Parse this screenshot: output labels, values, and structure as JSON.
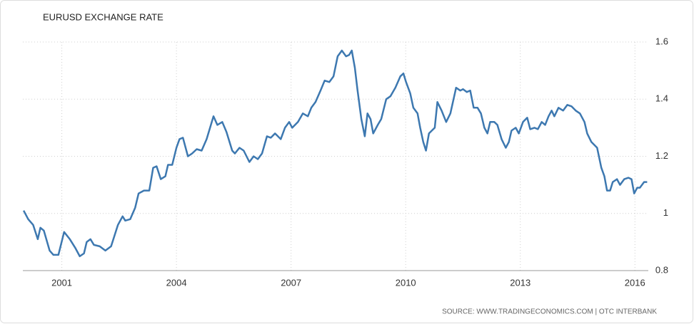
{
  "chart_data": {
    "type": "line",
    "title": "EURUSD EXCHANGE RATE",
    "source": "SOURCE: WWW.TRADINGECONOMICS.COM | OTC INTERBANK",
    "x": [
      2000.0,
      2000.12,
      2000.25,
      2000.37,
      2000.44,
      2000.53,
      2000.68,
      2000.78,
      2000.91,
      2001.06,
      2001.21,
      2001.35,
      2001.47,
      2001.58,
      2001.65,
      2001.75,
      2001.84,
      2001.99,
      2002.14,
      2002.29,
      2002.47,
      2002.59,
      2002.66,
      2002.79,
      2002.92,
      2003.01,
      2003.15,
      2003.29,
      2003.39,
      2003.48,
      2003.59,
      2003.71,
      2003.78,
      2003.89,
      2004.0,
      2004.08,
      2004.17,
      2004.3,
      2004.41,
      2004.53,
      2004.66,
      2004.79,
      2004.97,
      2005.07,
      2005.2,
      2005.31,
      2005.46,
      2005.53,
      2005.65,
      2005.76,
      2005.91,
      2006.02,
      2006.13,
      2006.24,
      2006.37,
      2006.47,
      2006.58,
      2006.73,
      2006.84,
      2006.95,
      2007.03,
      2007.18,
      2007.31,
      2007.44,
      2007.53,
      2007.64,
      2007.77,
      2007.88,
      2008.0,
      2008.11,
      2008.22,
      2008.33,
      2008.44,
      2008.52,
      2008.59,
      2008.67,
      2008.74,
      2008.84,
      2008.93,
      2009.0,
      2009.08,
      2009.15,
      2009.27,
      2009.36,
      2009.49,
      2009.6,
      2009.73,
      2009.86,
      2009.94,
      2010.01,
      2010.12,
      2010.2,
      2010.31,
      2010.38,
      2010.46,
      2010.53,
      2010.61,
      2010.76,
      2010.83,
      2010.94,
      2011.06,
      2011.17,
      2011.32,
      2011.43,
      2011.5,
      2011.6,
      2011.69,
      2011.78,
      2011.88,
      2011.97,
      2012.06,
      2012.14,
      2012.21,
      2012.32,
      2012.4,
      2012.51,
      2012.62,
      2012.7,
      2012.77,
      2012.88,
      2012.96,
      2013.07,
      2013.18,
      2013.26,
      2013.37,
      2013.46,
      2013.56,
      2013.65,
      2013.74,
      2013.82,
      2013.89,
      2014.0,
      2014.12,
      2014.23,
      2014.34,
      2014.45,
      2014.56,
      2014.68,
      2014.75,
      2014.86,
      2015.01,
      2015.12,
      2015.2,
      2015.27,
      2015.35,
      2015.42,
      2015.53,
      2015.61,
      2015.72,
      2015.83,
      2015.91,
      2015.98,
      2016.06,
      2016.13,
      2016.24,
      2016.32
    ],
    "series": [
      {
        "color": "#3d78b0",
        "values": [
          1.01,
          0.98,
          0.96,
          0.91,
          0.95,
          0.94,
          0.87,
          0.855,
          0.855,
          0.935,
          0.91,
          0.88,
          0.85,
          0.86,
          0.9,
          0.91,
          0.89,
          0.885,
          0.87,
          0.885,
          0.96,
          0.99,
          0.975,
          0.98,
          1.02,
          1.07,
          1.08,
          1.08,
          1.16,
          1.165,
          1.12,
          1.13,
          1.17,
          1.17,
          1.23,
          1.26,
          1.265,
          1.2,
          1.21,
          1.225,
          1.22,
          1.26,
          1.34,
          1.31,
          1.32,
          1.285,
          1.22,
          1.21,
          1.23,
          1.22,
          1.18,
          1.2,
          1.19,
          1.21,
          1.27,
          1.265,
          1.28,
          1.26,
          1.3,
          1.32,
          1.3,
          1.32,
          1.35,
          1.34,
          1.37,
          1.39,
          1.43,
          1.465,
          1.46,
          1.48,
          1.55,
          1.57,
          1.55,
          1.555,
          1.57,
          1.51,
          1.43,
          1.33,
          1.27,
          1.35,
          1.33,
          1.28,
          1.31,
          1.33,
          1.4,
          1.41,
          1.44,
          1.48,
          1.49,
          1.46,
          1.42,
          1.37,
          1.35,
          1.3,
          1.25,
          1.22,
          1.28,
          1.3,
          1.39,
          1.36,
          1.32,
          1.35,
          1.44,
          1.43,
          1.435,
          1.425,
          1.43,
          1.37,
          1.37,
          1.35,
          1.3,
          1.28,
          1.32,
          1.32,
          1.31,
          1.26,
          1.23,
          1.25,
          1.29,
          1.3,
          1.28,
          1.32,
          1.335,
          1.295,
          1.3,
          1.295,
          1.32,
          1.31,
          1.34,
          1.36,
          1.34,
          1.37,
          1.36,
          1.38,
          1.375,
          1.36,
          1.35,
          1.32,
          1.28,
          1.25,
          1.23,
          1.16,
          1.13,
          1.08,
          1.08,
          1.11,
          1.12,
          1.1,
          1.12,
          1.125,
          1.12,
          1.07,
          1.09,
          1.09,
          1.11,
          1.11
        ]
      }
    ],
    "xlim": [
      1999.98,
      2016.35
    ],
    "xticks": [
      2001,
      2004,
      2007,
      2010,
      2013,
      2016
    ],
    "ylim": [
      0.8,
      1.6
    ],
    "yticks": [
      0.8,
      1,
      1.2,
      1.4,
      1.6
    ],
    "grid": true
  }
}
